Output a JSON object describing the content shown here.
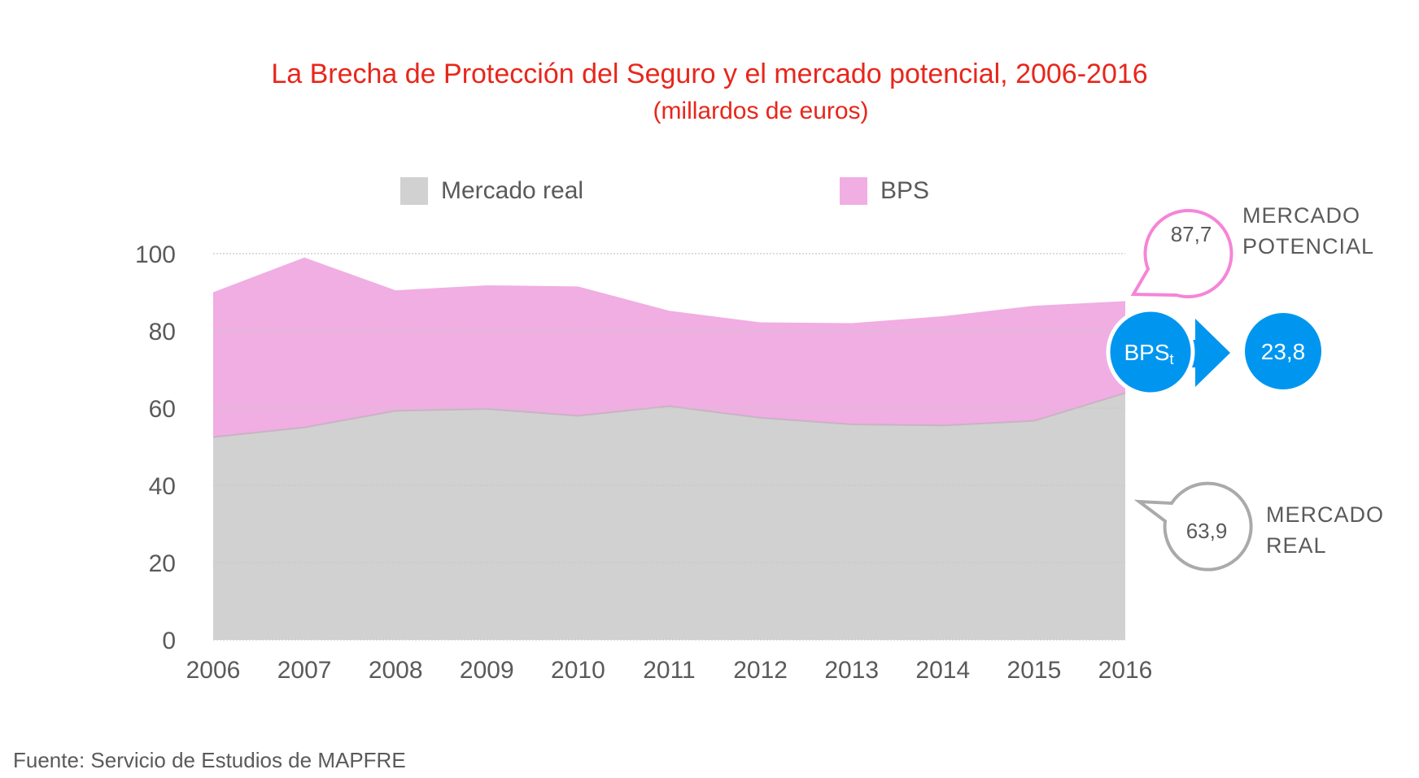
{
  "chart_data": {
    "type": "area",
    "title": "La Brecha de Protección del Seguro y el mercado potencial, 2006-2016",
    "subtitle": "(millardos de euros)",
    "xlabel": "",
    "ylabel": "",
    "categories": [
      "2006",
      "2007",
      "2008",
      "2009",
      "2010",
      "2011",
      "2012",
      "2013",
      "2014",
      "2015",
      "2016"
    ],
    "ylim": [
      0,
      100
    ],
    "yticks": [
      0,
      20,
      40,
      60,
      80,
      100
    ],
    "grid": true,
    "stacked": true,
    "legend_position": "top-center",
    "series": [
      {
        "name": "Mercado real",
        "color": "#d1d1d1",
        "values": [
          52.5,
          55.0,
          59.3,
          59.8,
          58.0,
          60.5,
          57.5,
          55.8,
          55.5,
          56.7,
          63.9
        ]
      },
      {
        "name": "BPS",
        "color": "#f0aee2",
        "values": [
          37.5,
          44.0,
          31.2,
          32.0,
          33.5,
          24.7,
          24.7,
          26.2,
          28.3,
          29.8,
          23.8
        ]
      }
    ],
    "totals": [
      90.0,
      99.0,
      90.5,
      91.8,
      91.5,
      85.2,
      82.2,
      82.0,
      83.8,
      86.5,
      87.7
    ],
    "annotations": {
      "potential": {
        "value": "87,7",
        "label_line1": "MERCADO",
        "label_line2": "POTENCIAL",
        "color": "#f585d8"
      },
      "real": {
        "value": "63,9",
        "label_line1": "MERCADO",
        "label_line2": "REAL",
        "color": "#aaaaaa"
      },
      "gap": {
        "label": "BPS",
        "label_sub": "t",
        "value": "23,8",
        "color": "#0096f0"
      }
    }
  },
  "legend": {
    "items": [
      {
        "label": "Mercado real",
        "color": "#d1d1d1"
      },
      {
        "label": "BPS",
        "color": "#f0aee2"
      }
    ]
  },
  "source": "Fuente: Servicio de Estudios de MAPFRE"
}
